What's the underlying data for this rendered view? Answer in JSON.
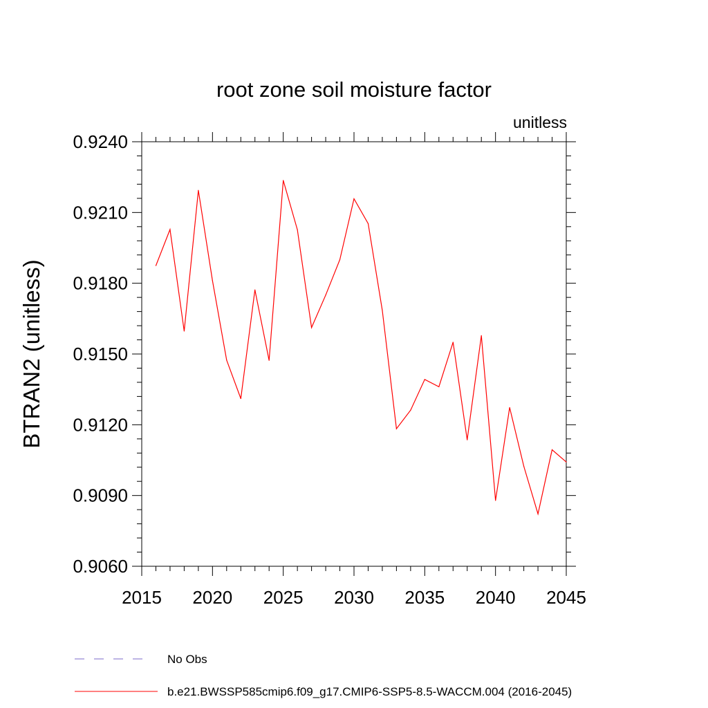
{
  "chart_data": {
    "type": "line",
    "title": "root zone soil moisture factor",
    "units_label": "unitless",
    "ylabel": "BTRAN2  (unitless)",
    "xlabel": "",
    "xlim": [
      2015,
      2045
    ],
    "ylim": [
      0.906,
      0.924
    ],
    "x_ticks": [
      "2015",
      "2020",
      "2025",
      "2030",
      "2035",
      "2040",
      "2045"
    ],
    "y_ticks": [
      "0.9060",
      "0.9090",
      "0.9120",
      "0.9150",
      "0.9180",
      "0.9210",
      "0.9240"
    ],
    "grid": false,
    "series": [
      {
        "name": "b.e21.BWSSP585cmip6.f09_g17.CMIP6-SSP5-8.5-WACCM.004 (2016-2045)",
        "color": "#ff0000",
        "x": [
          2016,
          2017,
          2018,
          2019,
          2020,
          2021,
          2022,
          2023,
          2024,
          2025,
          2026,
          2027,
          2028,
          2029,
          2030,
          2031,
          2032,
          2033,
          2034,
          2035,
          2036,
          2037,
          2038,
          2039,
          2040,
          2041,
          2042,
          2043,
          2044,
          2045
        ],
        "values": [
          0.91875,
          0.92028,
          0.91597,
          0.92194,
          0.91811,
          0.91474,
          0.91311,
          0.91772,
          0.91473,
          0.92236,
          0.92027,
          0.91612,
          0.9175,
          0.919,
          0.92158,
          0.92053,
          0.91686,
          0.91183,
          0.91262,
          0.91392,
          0.91361,
          0.9155,
          0.91136,
          0.91578,
          0.90879,
          0.91273,
          0.91024,
          0.90822,
          0.91094,
          0.91042
        ]
      }
    ],
    "legend": [
      {
        "label": "No Obs",
        "style": "dashed",
        "color": "#7b68c8"
      },
      {
        "label": "b.e21.BWSSP585cmip6.f09_g17.CMIP6-SSP5-8.5-WACCM.004 (2016-2045)",
        "style": "solid",
        "color": "#ff0000"
      }
    ],
    "legend_position": "bottom-left"
  }
}
